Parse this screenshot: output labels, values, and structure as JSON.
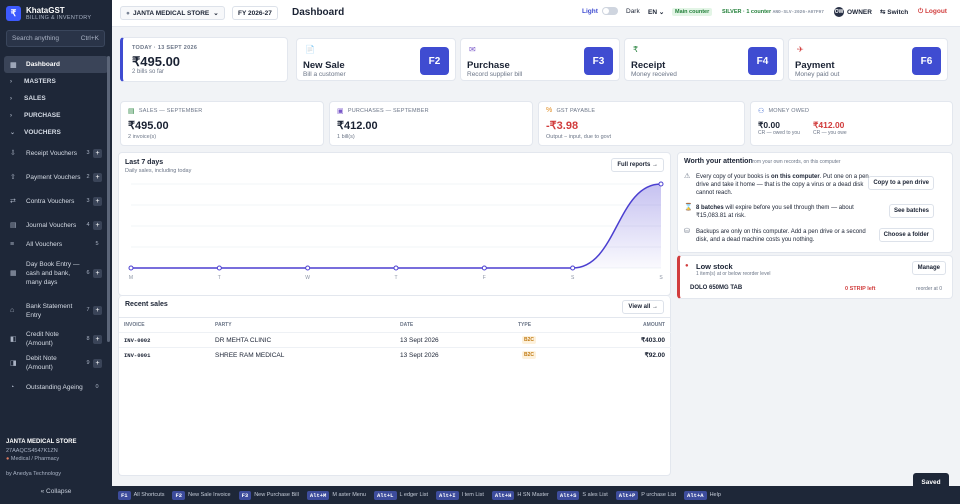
{
  "app": {
    "name": "KhataGST",
    "tagline": "BILLING & INVENTORY",
    "logo_glyph": "₹"
  },
  "sidebar": {
    "search_placeholder": "Search anything",
    "search_hint": "Ctrl+K",
    "dashboard": "Dashboard",
    "masters": "MASTERS",
    "sales": "SALES",
    "purchase": "PURCHASE",
    "vouchers": "VOUCHERS",
    "voucher_items": [
      {
        "label": "Receipt Vouchers",
        "num": "3",
        "lines": 2
      },
      {
        "label": "Payment Vouchers",
        "num": "2",
        "lines": 2
      },
      {
        "label": "Contra Vouchers",
        "num": "3",
        "lines": 2
      },
      {
        "label": "Journal Vouchers",
        "num": "4",
        "lines": 2
      },
      {
        "label": "All Vouchers",
        "num": "5",
        "lines": 1
      },
      {
        "label": "Day Book Entry — cash and bank, many days",
        "num": "6",
        "lines": 4
      },
      {
        "label": "Bank Statement Entry",
        "num": "7",
        "lines": 3
      },
      {
        "label": "Credit Note (Amount)",
        "num": "8",
        "lines": 2
      },
      {
        "label": "Debit Note (Amount)",
        "num": "9",
        "lines": 2
      },
      {
        "label": "Outstanding Ageing",
        "num": "0",
        "lines": 2
      }
    ],
    "company_name": "JANTA MEDICAL STORE",
    "gstin": "27AAQCS4547K1ZN",
    "category": "Medical / Pharmacy",
    "credit": "by Anedya Technology",
    "collapse": "« Collapse"
  },
  "topbar": {
    "company": "JANTA MEDICAL STORE",
    "fy": "FY 2026-27",
    "title": "Dashboard",
    "light": "Light",
    "dark": "Dark",
    "lang": "EN",
    "counter": "Main counter",
    "tier": "SILVER · 1 counter",
    "license": "ANO-SLV-2026-A07F97",
    "owner": "OWNER",
    "owner_initials": "OW",
    "switch": "⇆ Switch",
    "logout": "⏻ Logout"
  },
  "today": {
    "label": "TODAY · 13 SEPT 2026",
    "amount": "₹495.00",
    "sub": "2 bills so far"
  },
  "quick_actions": [
    {
      "icon": "📄",
      "name": "New Sale",
      "desc": "Bill a customer",
      "key": "F2",
      "color": "#3f6bd1"
    },
    {
      "icon": "✉",
      "name": "Purchase",
      "desc": "Record supplier bill",
      "key": "F3",
      "color": "#7a58c9"
    },
    {
      "icon": "₹",
      "name": "Receipt",
      "desc": "Money received",
      "key": "F4",
      "color": "#23803a"
    },
    {
      "icon": "✈",
      "name": "Payment",
      "desc": "Money paid out",
      "key": "F6",
      "color": "#d13d3d"
    }
  ],
  "stats": {
    "sales": {
      "label": "SALES — SEPTEMBER",
      "value": "₹495.00",
      "sub": "2 invoice(s)"
    },
    "purchases": {
      "label": "PURCHASES — SEPTEMBER",
      "value": "₹412.00",
      "sub": "1 bill(s)"
    },
    "gst": {
      "label": "GST PAYABLE",
      "value": "-₹3.98",
      "sub": "Output − input, due to govt"
    },
    "owed": {
      "label": "MONEY OWED",
      "in_val": "₹0.00",
      "in_sub": "CR — owed to you",
      "out_val": "₹412.00",
      "out_sub": "CR — you owe"
    }
  },
  "chart": {
    "title": "Last 7 days",
    "subtitle": "Daily sales, including today",
    "button": "Full reports →"
  },
  "chart_data": {
    "type": "area",
    "categories": [
      "M",
      "T",
      "W",
      "T",
      "F",
      "S",
      "S"
    ],
    "values": [
      0,
      0,
      0,
      0,
      0,
      0,
      495
    ],
    "grid": true
  },
  "recent": {
    "title": "Recent sales",
    "button": "View all →",
    "headers": {
      "invoice": "INVOICE",
      "party": "PARTY",
      "date": "DATE",
      "type": "TYPE",
      "amount": "AMOUNT"
    },
    "rows": [
      {
        "invoice": "INV-0002",
        "party": "DR MEHTA CLINIC",
        "date": "13 Sept 2026",
        "type": "B2C",
        "amount": "₹403.00"
      },
      {
        "invoice": "INV-0001",
        "party": "SHREE RAM MEDICAL",
        "date": "13 Sept 2026",
        "type": "B2C",
        "amount": "₹92.00"
      }
    ]
  },
  "attention": {
    "title": "Worth your attention",
    "sub": "from your own records, on this computer",
    "items": [
      {
        "icon": "⚠",
        "pre": "Every copy of your books is ",
        "bold": "on this computer",
        "post": ". Put one on a pen drive and take it home — that is the copy a virus or a dead disk cannot reach.",
        "button": "Copy to a pen drive"
      },
      {
        "icon": "⌛",
        "pre": "",
        "bold": "8 batches",
        "post": " will expire before you sell through them — about ₹15,083.81 at risk.",
        "button": "See batches"
      },
      {
        "icon": "⛁",
        "pre": "",
        "bold": "",
        "post": "Backups are only on this computer. Add a pen drive or a second disk, and a dead machine costs you nothing.",
        "button": "Choose a folder"
      }
    ]
  },
  "lowstock": {
    "title": "Low stock",
    "sub": "1 item(s) at or below reorder level",
    "button": "Manage",
    "item": "DOLO 650MG TAB",
    "qty": "0 STRIP left",
    "reorder": "reorder at 0"
  },
  "footer": [
    {
      "k": "F1",
      "l": "All Shortcuts"
    },
    {
      "k": "F2",
      "l": "New Sale Invoice"
    },
    {
      "k": "F3",
      "l": "New Purchase Bill"
    },
    {
      "k": "Alt+M",
      "l": "M aster Menu"
    },
    {
      "k": "Alt+L",
      "l": "L edger List"
    },
    {
      "k": "Alt+I",
      "l": "I tem List"
    },
    {
      "k": "Alt+H",
      "l": "H SN Master"
    },
    {
      "k": "Alt+S",
      "l": "S ales List"
    },
    {
      "k": "Alt+P",
      "l": "P urchase List"
    },
    {
      "k": "Alt+A",
      "l": "Help"
    }
  ],
  "toast": "Saved"
}
